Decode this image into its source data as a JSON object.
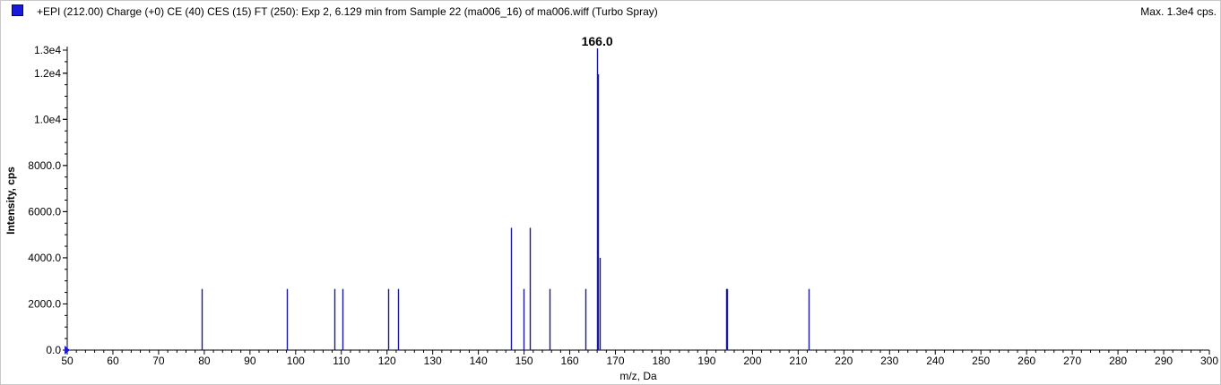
{
  "header": {
    "title": "+EPI (212.00) Charge (+0) CE (40) CES (15) FT (250): Exp 2, 6.129 min from Sample 22 (ma006_16) of ma006.wiff (Turbo Spray)",
    "max_label": "Max. 1.3e4 cps.",
    "legend_color": "#1a1ad8"
  },
  "chart_data": {
    "type": "bar",
    "title": "+EPI (212.00) Charge (+0) CE (40) CES (15) FT (250): Exp 2, 6.129 min from Sample 22 (ma006_16) of ma006.wiff (Turbo Spray)",
    "xlabel": "m/z, Da",
    "ylabel": "Intensity, cps",
    "xlim": [
      50,
      300
    ],
    "ylim": [
      0,
      13000
    ],
    "x_ticks": [
      50,
      60,
      70,
      80,
      90,
      100,
      110,
      120,
      130,
      140,
      150,
      160,
      170,
      180,
      190,
      200,
      210,
      220,
      230,
      240,
      250,
      260,
      270,
      280,
      290,
      300
    ],
    "x_tick_labels": [
      "50",
      "60",
      "70",
      "80",
      "90",
      "100",
      "110",
      "120",
      "130",
      "140",
      "150",
      "160",
      "170",
      "180",
      "190",
      "200",
      "210",
      "220",
      "230",
      "240",
      "250",
      "260",
      "270",
      "280",
      "290",
      "300"
    ],
    "y_ticks": [
      0,
      2000,
      4000,
      6000,
      8000,
      10000,
      12000,
      13000
    ],
    "y_tick_labels": [
      "0.0",
      "2000.0",
      "4000.0",
      "6000.0",
      "8000.0",
      "1.0e4",
      "1.2e4",
      "1.3e4"
    ],
    "series": [
      {
        "color": "#1a1a9a",
        "points": [
          {
            "x": 79.4,
            "y": 2650
          },
          {
            "x": 98.1,
            "y": 2650
          },
          {
            "x": 108.5,
            "y": 2650
          },
          {
            "x": 110.2,
            "y": 2650
          },
          {
            "x": 120.3,
            "y": 2650
          },
          {
            "x": 122.4,
            "y": 2650
          },
          {
            "x": 147.2,
            "y": 5300
          },
          {
            "x": 149.9,
            "y": 2650
          },
          {
            "x": 151.2,
            "y": 5300
          },
          {
            "x": 155.5,
            "y": 2650
          },
          {
            "x": 163.4,
            "y": 2650
          },
          {
            "x": 166.0,
            "y": 13300
          },
          {
            "x": 166.2,
            "y": 11950
          },
          {
            "x": 166.5,
            "y": 4000
          },
          {
            "x": 194.2,
            "y": 2650
          },
          {
            "x": 194.4,
            "y": 2650
          },
          {
            "x": 212.3,
            "y": 2650
          }
        ]
      }
    ],
    "annotations": [
      {
        "text": "166.0",
        "x": 166.0
      }
    ],
    "grid": false,
    "legend": "top-left"
  }
}
